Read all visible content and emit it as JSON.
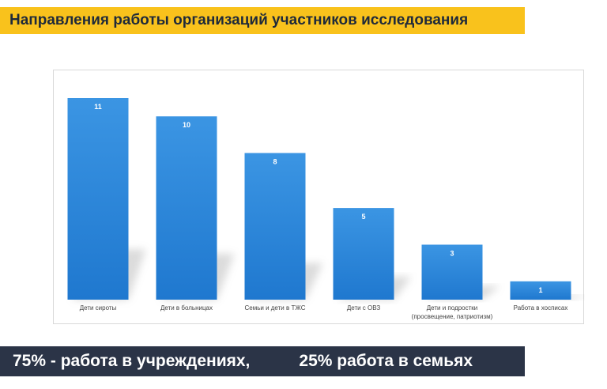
{
  "header": {
    "title": "Направления работы организаций участников исследования"
  },
  "chart_data": {
    "type": "bar",
    "categories": [
      [
        "Дети сироты"
      ],
      [
        "Дети в больницах"
      ],
      [
        "Семьи и дети в ТЖС"
      ],
      [
        "Дети с ОВЗ"
      ],
      [
        "Дети и подростки",
        "(просвещение, патриотизм)"
      ],
      [
        "Работа в хосписах"
      ]
    ],
    "values": [
      11,
      10,
      8,
      5,
      3,
      1
    ],
    "title": "",
    "xlabel": "",
    "ylabel": "",
    "ylim": [
      0,
      11
    ],
    "grid": false,
    "legend": "none",
    "bar_color": "#2b86d9"
  },
  "footer": {
    "left_text": "75% - работа в учреждениях,",
    "right_text": "25% работа в семьях"
  }
}
